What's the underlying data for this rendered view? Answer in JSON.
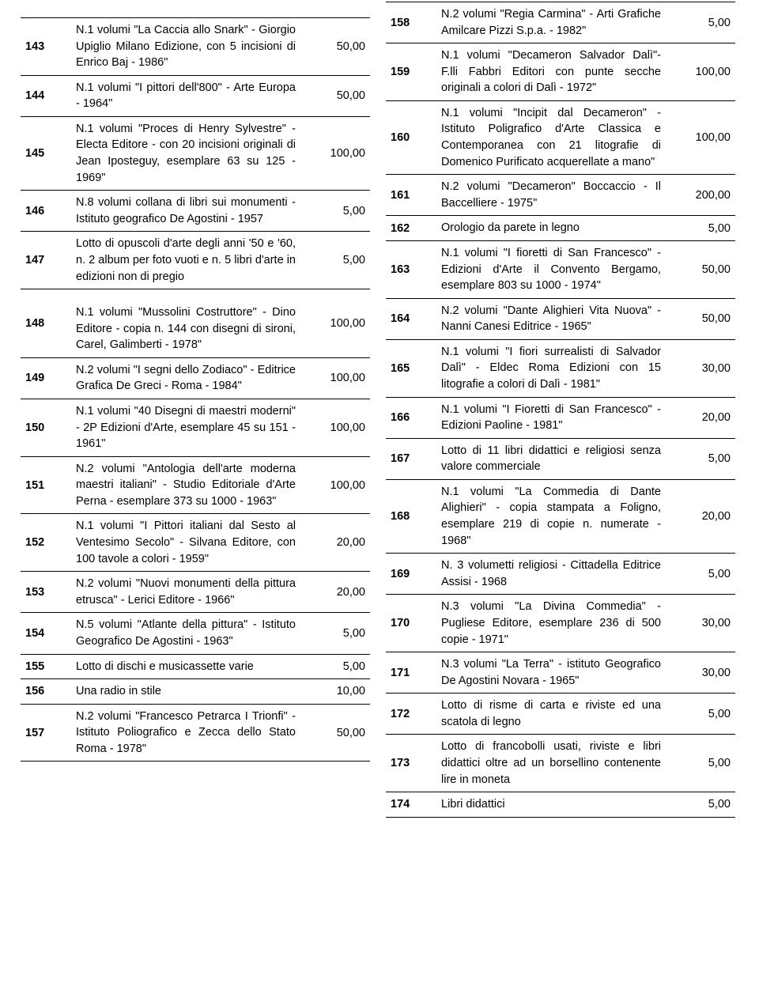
{
  "columns": {
    "left": [
      {
        "lot": "143",
        "desc": "N.1 volumi  \"La Caccia allo Snark\" - Giorgio Upiglio Milano Edizione, con 5 incisioni di Enrico Baj - 1986\"",
        "price": "50,00"
      },
      {
        "lot": "144",
        "desc": "N.1 volumi  \"I pittori dell'800\" - Arte Europa - 1964\"",
        "price": "50,00"
      },
      {
        "lot": "145",
        "desc": "N.1 volumi  \"Proces di Henry Sylvestre\" - Electa Editore - con 20 incisioni originali di Jean Iposteguy, esemplare 63 su 125 - 1969\"",
        "price": "100,00"
      },
      {
        "lot": "146",
        "desc": "N.8 volumi  collana di libri sui monumenti - Istituto geografico De Agostini - 1957",
        "price": "5,00"
      },
      {
        "lot": "147",
        "desc": "Lotto di opuscoli d'arte degli anni '50 e '60, n. 2 album per foto vuoti e n. 5 libri d'arte in edizioni non di pregio",
        "price": "5,00"
      },
      {
        "lot": "148",
        "desc": "N.1 volumi  \"Mussolini Costruttore\" - Dino Editore - copia n. 144 con disegni di sironi, Carel, Galimberti - 1978\"",
        "price": "100,00",
        "spacer": true
      },
      {
        "lot": "149",
        "desc": "N.2 volumi  \"I segni dello Zodiaco\" - Editrice Grafica De Greci - Roma - 1984\"",
        "price": "100,00"
      },
      {
        "lot": "150",
        "desc": "N.1 volumi  \"40 Disegni di maestri moderni\" - 2P Edizioni d'Arte, esemplare 45 su 151 - 1961\"",
        "price": "100,00"
      },
      {
        "lot": "151",
        "desc": "N.2 volumi  \"Antologia dell'arte moderna maestri italiani\" - Studio Editoriale d'Arte Perna - esemplare 373 su 1000 - 1963\"",
        "price": "100,00"
      },
      {
        "lot": "152",
        "desc": "N.1 volumi  \"I Pittori italiani dal Sesto al Ventesimo Secolo\" - Silvana Editore, con 100 tavole a colori - 1959\"",
        "price": "20,00"
      },
      {
        "lot": "153",
        "desc": "N.2 volumi  \"Nuovi monumenti della pittura etrusca\" - Lerici Editore - 1966\"",
        "price": "20,00"
      },
      {
        "lot": "154",
        "desc": "N.5 volumi  \"Atlante della pittura\" - Istituto Geografico De Agostini - 1963\"",
        "price": "5,00"
      },
      {
        "lot": "155",
        "desc": "Lotto di dischi e musicassette varie",
        "price": "5,00"
      },
      {
        "lot": "156",
        "desc": "Una radio in stile",
        "price": "10,00"
      },
      {
        "lot": "157",
        "desc": "N.2 volumi  \"Francesco Petrarca I Trionfi\" - Istituto Poliografico e Zecca dello Stato Roma - 1978\"",
        "price": "50,00"
      }
    ],
    "right": [
      {
        "lot": "158",
        "desc": "N.2 volumi  \"Regia Carmina\" - Arti Grafiche Amilcare Pizzi S.p.a. - 1982\"",
        "price": "5,00"
      },
      {
        "lot": "159",
        "desc": "N.1 volumi  \"Decameron Salvador Dalì\"- F.lli Fabbri Editori con punte secche originali a colori di Dalì - 1972\"",
        "price": "100,00"
      },
      {
        "lot": "160",
        "desc": "N.1 volumi  \"Incipit dal Decameron\" - Istituto Poligrafico d'Arte Classica e Contemporanea con 21 litografie di Domenico Purificato acquerellate a mano\"",
        "price": "100,00"
      },
      {
        "lot": "161",
        "desc": "N.2 volumi  \"Decameron\" Boccaccio - Il Baccelliere - 1975\"",
        "price": "200,00"
      },
      {
        "lot": "162",
        "desc": "Orologio da parete in legno",
        "price": "5,00"
      },
      {
        "lot": "163",
        "desc": "N.1 volumi  \"I fioretti di San Francesco\" - Edizioni d'Arte il Convento Bergamo, esemplare 803 su 1000 - 1974\"",
        "price": "50,00"
      },
      {
        "lot": "164",
        "desc": "N.2 volumi  \"Dante Alighieri Vita Nuova\" - Nanni Canesi Editrice - 1965\"",
        "price": "50,00"
      },
      {
        "lot": "165",
        "desc": "N.1 volumi  \"I fiori surrealisti di Salvador Dalì\" - Eldec Roma Edizioni con 15 litografie a colori di Dalì - 1981\"",
        "price": "30,00"
      },
      {
        "lot": "166",
        "desc": "N.1 volumi  \"I Fioretti di San Francesco\" - Edizioni Paoline - 1981\"",
        "price": "20,00"
      },
      {
        "lot": "167",
        "desc": "Lotto di 11 libri didattici e religiosi senza valore commerciale",
        "price": "5,00"
      },
      {
        "lot": "168",
        "desc": "N.1 volumi  \"La Commedia di Dante Alighieri\" - copia stampata a Foligno, esemplare 219 di copie n. numerate - 1968\"",
        "price": "20,00"
      },
      {
        "lot": "169",
        "desc": "N. 3 volumetti religiosi - Cittadella Editrice Assisi - 1968",
        "price": "5,00"
      },
      {
        "lot": "170",
        "desc": "N.3 volumi  \"La Divina Commedia\" - Pugliese Editore, esemplare 236 di 500 copie - 1971\"",
        "price": "30,00"
      },
      {
        "lot": "171",
        "desc": "N.3 volumi  \"La Terra\" - istituto Geografico De Agostini Novara - 1965\"",
        "price": "30,00"
      },
      {
        "lot": "172",
        "desc": "Lotto di risme di carta e riviste ed una scatola di legno",
        "price": "5,00"
      },
      {
        "lot": "173",
        "desc": "Lotto di francobolli usati, riviste e libri didattici oltre ad un borsellino contenente lire in moneta",
        "price": "5,00"
      },
      {
        "lot": "174",
        "desc": "Libri didattici",
        "price": "5,00"
      }
    ]
  }
}
